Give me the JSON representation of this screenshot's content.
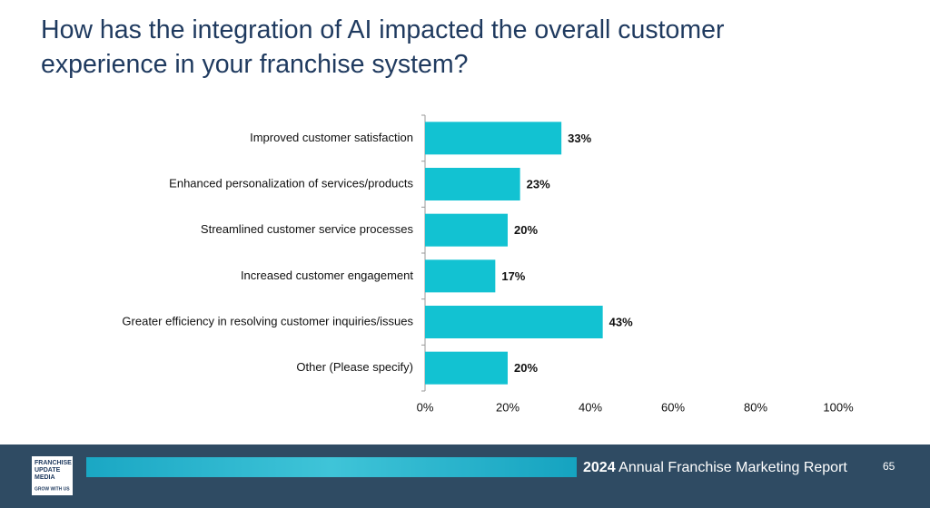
{
  "chart_data": {
    "type": "bar",
    "orientation": "horizontal",
    "title": "How has the integration of AI impacted the overall customer experience in your franchise system?",
    "categories": [
      "Improved customer satisfaction",
      "Enhanced personalization of services/products",
      "Streamlined customer service processes",
      "Increased customer engagement",
      "Greater efficiency in resolving customer inquiries/issues",
      "Other (Please specify)"
    ],
    "values": [
      33,
      23,
      20,
      17,
      43,
      20
    ],
    "value_labels": [
      "33%",
      "23%",
      "20%",
      "17%",
      "43%",
      "20%"
    ],
    "color": "#12c2d2",
    "xlim": [
      0,
      100
    ],
    "xticks": [
      {
        "value": 0,
        "label": "0%"
      },
      {
        "value": 20,
        "label": "20%"
      },
      {
        "value": 40,
        "label": "40%"
      },
      {
        "value": 60,
        "label": "60%"
      },
      {
        "value": 80,
        "label": "80%"
      },
      {
        "value": 100,
        "label": "100%"
      }
    ],
    "grid": false
  },
  "footer": {
    "logo": [
      "FRANCHISE",
      "UPDATE",
      "MEDIA"
    ],
    "tagline": "GROW WITH US",
    "year": "2024",
    "report": "Annual Franchise Marketing Report",
    "page": "65"
  }
}
